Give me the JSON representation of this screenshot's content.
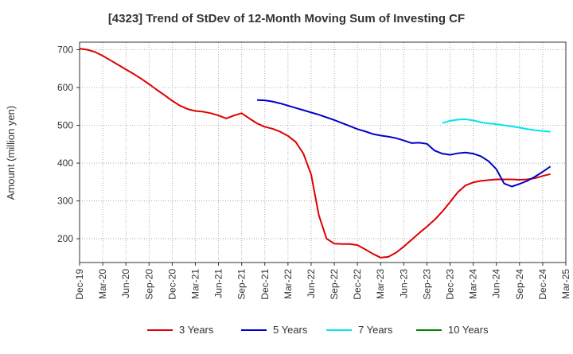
{
  "chart_data": {
    "type": "line",
    "title": "[4323]  Trend of StDev of 12-Month Moving Sum of Investing CF",
    "xlabel": "",
    "ylabel": "Amount (million yen)",
    "x_ticks": [
      "Dec-19",
      "Mar-20",
      "Jun-20",
      "Sep-20",
      "Dec-20",
      "Mar-21",
      "Jun-21",
      "Sep-21",
      "Dec-21",
      "Mar-22",
      "Jun-22",
      "Sep-22",
      "Dec-22",
      "Mar-23",
      "Jun-23",
      "Sep-23",
      "Dec-23",
      "Mar-24",
      "Jun-24",
      "Sep-24",
      "Dec-24",
      "Mar-25"
    ],
    "y_ticks": [
      200,
      300,
      400,
      500,
      600,
      700
    ],
    "ylim": [
      137,
      720
    ],
    "grid": true,
    "legend_position": "bottom",
    "series": [
      {
        "name": "3 Years",
        "color": "#dd0000",
        "values": [
          [
            "2019-12",
            703
          ],
          [
            "2020-01",
            700
          ],
          [
            "2020-02",
            694
          ],
          [
            "2020-03",
            684
          ],
          [
            "2020-04",
            672
          ],
          [
            "2020-05",
            660
          ],
          [
            "2020-06",
            648
          ],
          [
            "2020-07",
            636
          ],
          [
            "2020-08",
            623
          ],
          [
            "2020-09",
            609
          ],
          [
            "2020-10",
            594
          ],
          [
            "2020-11",
            580
          ],
          [
            "2020-12",
            565
          ],
          [
            "2021-01",
            552
          ],
          [
            "2021-02",
            543
          ],
          [
            "2021-03",
            538
          ],
          [
            "2021-04",
            536
          ],
          [
            "2021-05",
            532
          ],
          [
            "2021-06",
            526
          ],
          [
            "2021-07",
            518
          ],
          [
            "2021-08",
            526
          ],
          [
            "2021-09",
            532
          ],
          [
            "2021-10",
            518
          ],
          [
            "2021-11",
            505
          ],
          [
            "2021-12",
            496
          ],
          [
            "2022-01",
            491
          ],
          [
            "2022-02",
            483
          ],
          [
            "2022-03",
            472
          ],
          [
            "2022-04",
            456
          ],
          [
            "2022-05",
            425
          ],
          [
            "2022-06",
            370
          ],
          [
            "2022-07",
            262
          ],
          [
            "2022-08",
            200
          ],
          [
            "2022-09",
            187
          ],
          [
            "2022-10",
            186
          ],
          [
            "2022-11",
            186
          ],
          [
            "2022-12",
            183
          ],
          [
            "2023-01",
            172
          ],
          [
            "2023-02",
            160
          ],
          [
            "2023-03",
            150
          ],
          [
            "2023-04",
            152
          ],
          [
            "2023-05",
            163
          ],
          [
            "2023-06",
            179
          ],
          [
            "2023-07",
            197
          ],
          [
            "2023-08",
            215
          ],
          [
            "2023-09",
            232
          ],
          [
            "2023-10",
            250
          ],
          [
            "2023-11",
            272
          ],
          [
            "2023-12",
            297
          ],
          [
            "2024-01",
            323
          ],
          [
            "2024-02",
            341
          ],
          [
            "2024-03",
            349
          ],
          [
            "2024-04",
            353
          ],
          [
            "2024-05",
            355
          ],
          [
            "2024-06",
            357
          ],
          [
            "2024-07",
            357
          ],
          [
            "2024-08",
            357
          ],
          [
            "2024-09",
            356
          ],
          [
            "2024-10",
            357
          ],
          [
            "2024-11",
            360
          ],
          [
            "2024-12",
            366
          ],
          [
            "2025-01",
            371
          ]
        ]
      },
      {
        "name": "5 Years",
        "color": "#0000cc",
        "values": [
          [
            "2021-11",
            567
          ],
          [
            "2021-12",
            566
          ],
          [
            "2022-01",
            563
          ],
          [
            "2022-02",
            558
          ],
          [
            "2022-03",
            552
          ],
          [
            "2022-04",
            546
          ],
          [
            "2022-05",
            540
          ],
          [
            "2022-06",
            534
          ],
          [
            "2022-07",
            528
          ],
          [
            "2022-08",
            521
          ],
          [
            "2022-09",
            514
          ],
          [
            "2022-10",
            506
          ],
          [
            "2022-11",
            498
          ],
          [
            "2022-12",
            490
          ],
          [
            "2023-01",
            484
          ],
          [
            "2023-02",
            477
          ],
          [
            "2023-03",
            473
          ],
          [
            "2023-04",
            470
          ],
          [
            "2023-05",
            466
          ],
          [
            "2023-06",
            460
          ],
          [
            "2023-07",
            453
          ],
          [
            "2023-08",
            454
          ],
          [
            "2023-09",
            451
          ],
          [
            "2023-10",
            433
          ],
          [
            "2023-11",
            425
          ],
          [
            "2023-12",
            422
          ],
          [
            "2024-01",
            426
          ],
          [
            "2024-02",
            428
          ],
          [
            "2024-03",
            425
          ],
          [
            "2024-04",
            418
          ],
          [
            "2024-05",
            405
          ],
          [
            "2024-06",
            384
          ],
          [
            "2024-07",
            346
          ],
          [
            "2024-08",
            338
          ],
          [
            "2024-09",
            345
          ],
          [
            "2024-10",
            353
          ],
          [
            "2024-11",
            364
          ],
          [
            "2024-12",
            377
          ],
          [
            "2025-01",
            391
          ]
        ]
      },
      {
        "name": "7 Years",
        "color": "#00e5ee",
        "values": [
          [
            "2023-11",
            506
          ],
          [
            "2023-12",
            512
          ],
          [
            "2024-01",
            515
          ],
          [
            "2024-02",
            516
          ],
          [
            "2024-03",
            513
          ],
          [
            "2024-04",
            508
          ],
          [
            "2024-05",
            505
          ],
          [
            "2024-06",
            503
          ],
          [
            "2024-07",
            500
          ],
          [
            "2024-08",
            497
          ],
          [
            "2024-09",
            494
          ],
          [
            "2024-10",
            490
          ],
          [
            "2024-11",
            487
          ],
          [
            "2024-12",
            485
          ],
          [
            "2025-01",
            483
          ]
        ]
      },
      {
        "name": "10 Years",
        "color": "#008000",
        "values": []
      }
    ]
  }
}
